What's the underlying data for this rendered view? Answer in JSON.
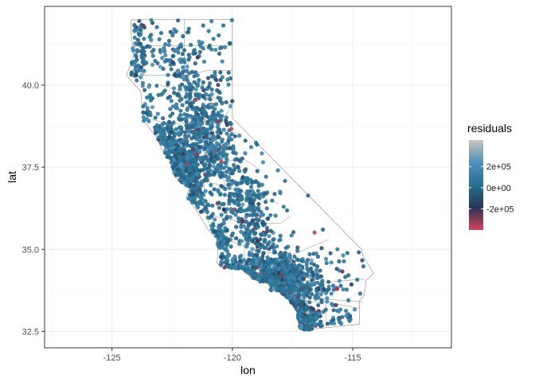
{
  "chart_data": {
    "type": "scatter",
    "title": "",
    "xlabel": "lon",
    "ylabel": "lat",
    "xlim": [
      -127.8,
      -110.9
    ],
    "ylim": [
      32.0,
      42.4
    ],
    "x_ticks": [
      -125,
      -120,
      -115
    ],
    "x_tick_labels": [
      "-125",
      "-120",
      "-115"
    ],
    "y_ticks": [
      32.5,
      35.0,
      37.5,
      40.0
    ],
    "y_tick_labels": [
      "32.5",
      "35.0",
      "37.5",
      "40.0"
    ],
    "grid": true,
    "map_outline": "California state and county boundaries",
    "points_source": "California housing observations plotted at lon/lat, colored by regression residuals",
    "points_summary": {
      "min_residual": -400000,
      "max_residual": 450000,
      "typical_residual": 50000
    },
    "legend": {
      "title": "residuals",
      "position": "right",
      "tick_values": [
        200000,
        0,
        -200000
      ],
      "tick_labels": [
        "2e+05",
        "0e+00",
        "-2e+05"
      ],
      "range": [
        -400000,
        450000
      ],
      "colors": [
        "#d6435a",
        "#2a3457",
        "#286f8f",
        "#5090bd",
        "#cbc4b9"
      ]
    },
    "theme": {
      "panel_border": "#333333",
      "gridline_major": "#ebebeb",
      "gridline_minor": "#f5f5f5",
      "county_line": "#888888"
    }
  }
}
